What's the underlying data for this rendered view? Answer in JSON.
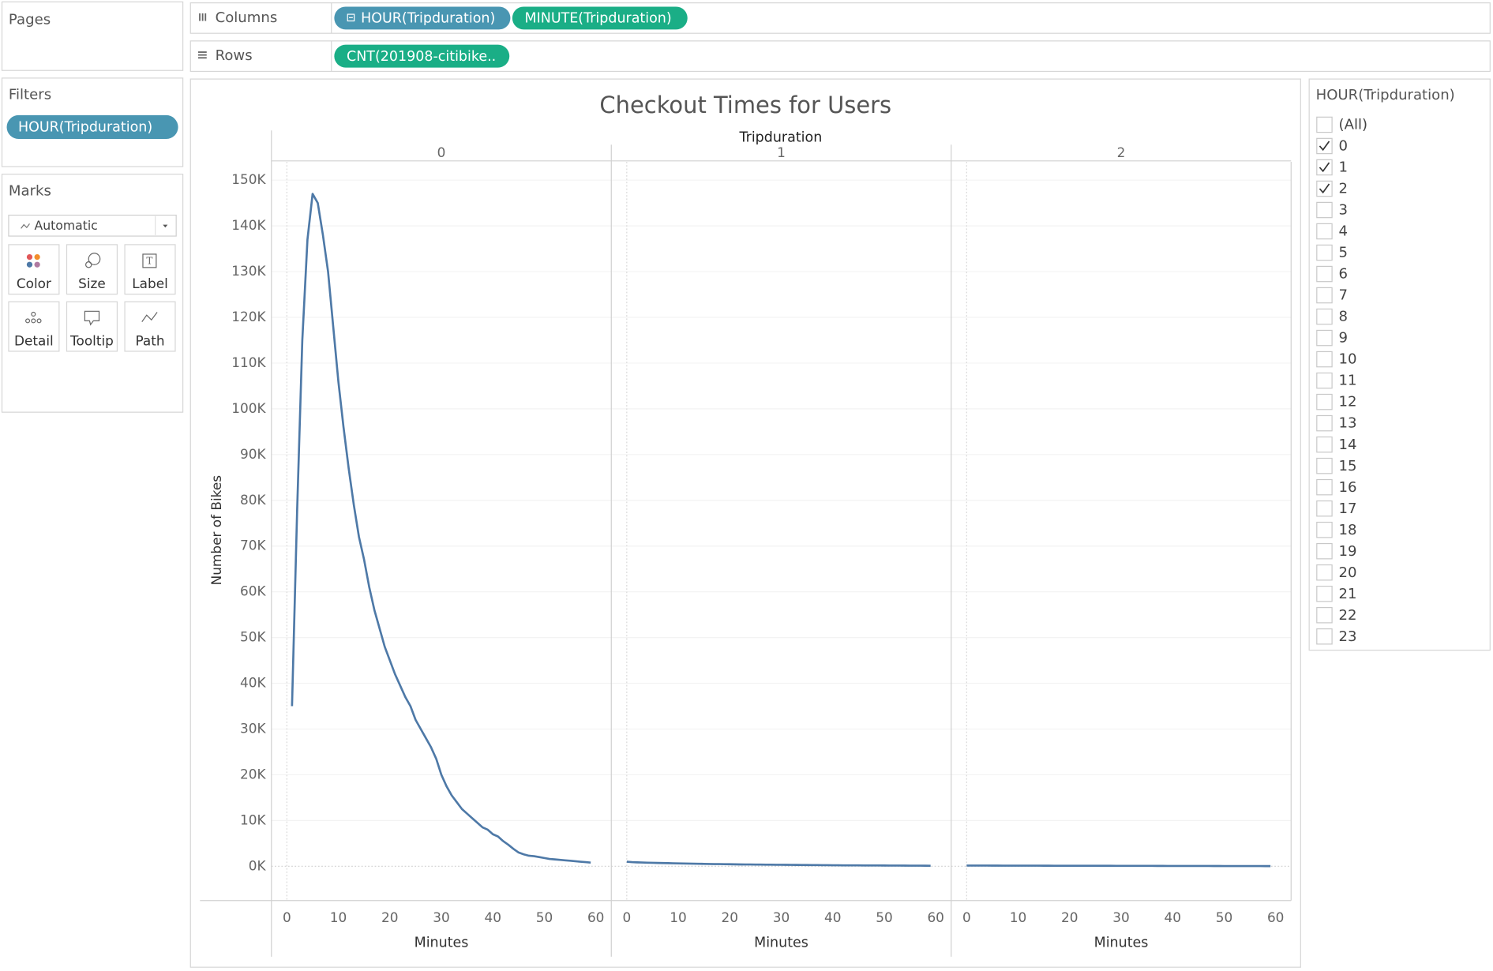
{
  "shelves": {
    "pages": "Pages",
    "columns": {
      "label": "Columns",
      "pills": [
        "HOUR(Tripduration)",
        "MINUTE(Tripduration)"
      ]
    },
    "rows": {
      "label": "Rows",
      "pills": [
        "CNT(201908-citibike.."
      ]
    }
  },
  "filters": {
    "label": "Filters",
    "pills": [
      "HOUR(Tripduration)"
    ]
  },
  "marks": {
    "label": "Marks",
    "type": "Automatic",
    "buttons": [
      "Color",
      "Size",
      "Label",
      "Detail",
      "Tooltip",
      "Path"
    ]
  },
  "filter_card": {
    "title": "HOUR(Tripduration)",
    "options": [
      {
        "label": "(All)",
        "checked": false
      },
      {
        "label": "0",
        "checked": true
      },
      {
        "label": "1",
        "checked": true
      },
      {
        "label": "2",
        "checked": true
      },
      {
        "label": "3",
        "checked": false
      },
      {
        "label": "4",
        "checked": false
      },
      {
        "label": "5",
        "checked": false
      },
      {
        "label": "6",
        "checked": false
      },
      {
        "label": "7",
        "checked": false
      },
      {
        "label": "8",
        "checked": false
      },
      {
        "label": "9",
        "checked": false
      },
      {
        "label": "10",
        "checked": false
      },
      {
        "label": "11",
        "checked": false
      },
      {
        "label": "12",
        "checked": false
      },
      {
        "label": "13",
        "checked": false
      },
      {
        "label": "14",
        "checked": false
      },
      {
        "label": "15",
        "checked": false
      },
      {
        "label": "16",
        "checked": false
      },
      {
        "label": "17",
        "checked": false
      },
      {
        "label": "18",
        "checked": false
      },
      {
        "label": "19",
        "checked": false
      },
      {
        "label": "20",
        "checked": false
      },
      {
        "label": "21",
        "checked": false
      },
      {
        "label": "22",
        "checked": false
      },
      {
        "label": "23",
        "checked": false
      }
    ]
  },
  "chart_data": {
    "type": "line",
    "title": "Checkout Times for Users",
    "facet_label": "Tripduration",
    "x_label": "Minutes",
    "y_label": "Number of Bikes",
    "grid": true,
    "x": [
      0,
      1,
      2,
      3,
      4,
      5,
      6,
      7,
      8,
      9,
      10,
      11,
      12,
      13,
      14,
      15,
      16,
      17,
      18,
      19,
      20,
      21,
      22,
      23,
      24,
      25,
      26,
      27,
      28,
      29,
      30,
      31,
      32,
      33,
      34,
      35,
      36,
      37,
      38,
      39,
      40,
      41,
      42,
      43,
      44,
      45,
      46,
      47,
      48,
      49,
      50,
      51,
      52,
      53,
      54,
      55,
      56,
      57,
      58,
      59
    ],
    "xlim": [
      -3,
      63
    ],
    "xticks": [
      0,
      10,
      20,
      30,
      40,
      50,
      60
    ],
    "ylim": [
      -7500,
      154000
    ],
    "yticks": [
      {
        "value": 0,
        "label": "0K"
      },
      {
        "value": 10000,
        "label": "10K"
      },
      {
        "value": 20000,
        "label": "20K"
      },
      {
        "value": 30000,
        "label": "30K"
      },
      {
        "value": 40000,
        "label": "40K"
      },
      {
        "value": 50000,
        "label": "50K"
      },
      {
        "value": 60000,
        "label": "60K"
      },
      {
        "value": 70000,
        "label": "70K"
      },
      {
        "value": 80000,
        "label": "80K"
      },
      {
        "value": 90000,
        "label": "90K"
      },
      {
        "value": 100000,
        "label": "100K"
      },
      {
        "value": 110000,
        "label": "110K"
      },
      {
        "value": 120000,
        "label": "120K"
      },
      {
        "value": 130000,
        "label": "130K"
      },
      {
        "value": 140000,
        "label": "140K"
      },
      {
        "value": 150000,
        "label": "150K"
      }
    ],
    "series": [
      {
        "name": "0",
        "color": "#4e79a7",
        "values": [
          null,
          35000,
          78000,
          115000,
          137000,
          147000,
          145000,
          138000,
          130000,
          118000,
          106000,
          96000,
          87000,
          79000,
          72000,
          67000,
          61000,
          56000,
          52000,
          48000,
          45000,
          42000,
          39500,
          37000,
          35000,
          32000,
          30000,
          28000,
          26000,
          23500,
          20000,
          17500,
          15500,
          14000,
          12500,
          11500,
          10500,
          9500,
          8500,
          8000,
          7000,
          6500,
          5500,
          4700,
          3800,
          3000,
          2600,
          2300,
          2200,
          2000,
          1800,
          1600,
          1500,
          1400,
          1300,
          1200,
          1100,
          1000,
          900,
          800
        ]
      },
      {
        "name": "1",
        "color": "#4e79a7",
        "values": [
          1000,
          900,
          850,
          820,
          780,
          750,
          720,
          700,
          680,
          650,
          620,
          600,
          580,
          560,
          540,
          520,
          500,
          480,
          470,
          450,
          440,
          420,
          400,
          390,
          380,
          370,
          360,
          350,
          340,
          330,
          320,
          310,
          300,
          290,
          280,
          270,
          260,
          250,
          240,
          230,
          220,
          210,
          200,
          195,
          190,
          185,
          180,
          175,
          170,
          165,
          160,
          155,
          150,
          145,
          140,
          135,
          130,
          125,
          120,
          115
        ]
      },
      {
        "name": "2",
        "color": "#4e79a7",
        "values": [
          150,
          148,
          146,
          144,
          142,
          140,
          138,
          136,
          134,
          132,
          130,
          128,
          126,
          124,
          122,
          120,
          118,
          116,
          114,
          112,
          110,
          108,
          106,
          104,
          102,
          100,
          98,
          96,
          94,
          92,
          90,
          88,
          86,
          84,
          82,
          80,
          78,
          76,
          74,
          72,
          70,
          68,
          66,
          64,
          62,
          60,
          58,
          56,
          54,
          52,
          50,
          48,
          46,
          44,
          42,
          40,
          38,
          36,
          34,
          32
        ]
      }
    ]
  }
}
